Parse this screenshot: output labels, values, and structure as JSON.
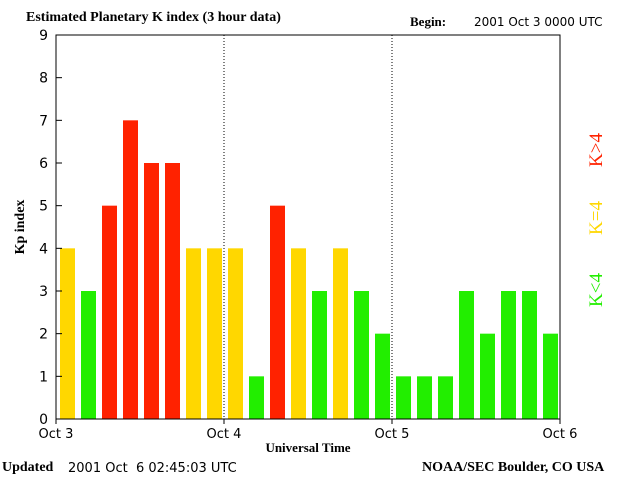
{
  "header": {
    "title": "Estimated Planetary K index (3 hour data)",
    "begin_label": "Begin:",
    "begin_value": "2001 Oct 3 0000 UTC"
  },
  "footer": {
    "updated_label": "Updated",
    "updated_value": "2001 Oct  6 02:45:03 UTC",
    "credit": "NOAA/SEC Boulder, CO USA"
  },
  "legend": [
    {
      "label": "K>4",
      "color": "#ff2200"
    },
    {
      "label": "K=4",
      "color": "#ffd700"
    },
    {
      "label": "K<4",
      "color": "#22ee00"
    }
  ],
  "chart_data": {
    "type": "bar",
    "title": "Estimated Planetary K index (3 hour data)",
    "xlabel": "Universal Time",
    "ylabel": "Kp index",
    "ylim": [
      0,
      9
    ],
    "yticks": [
      0,
      1,
      2,
      3,
      4,
      5,
      6,
      7,
      8,
      9
    ],
    "day_labels": [
      "Oct 3",
      "Oct 4",
      "Oct 5",
      "Oct 6"
    ],
    "values": [
      4,
      3,
      5,
      7,
      6,
      6,
      4,
      4,
      4,
      1,
      5,
      4,
      3,
      4,
      3,
      2,
      1,
      1,
      1,
      3,
      2,
      3,
      3,
      2
    ],
    "colors": {
      "above": "#ff2200",
      "equal": "#ffd700",
      "below": "#22ee00"
    }
  }
}
